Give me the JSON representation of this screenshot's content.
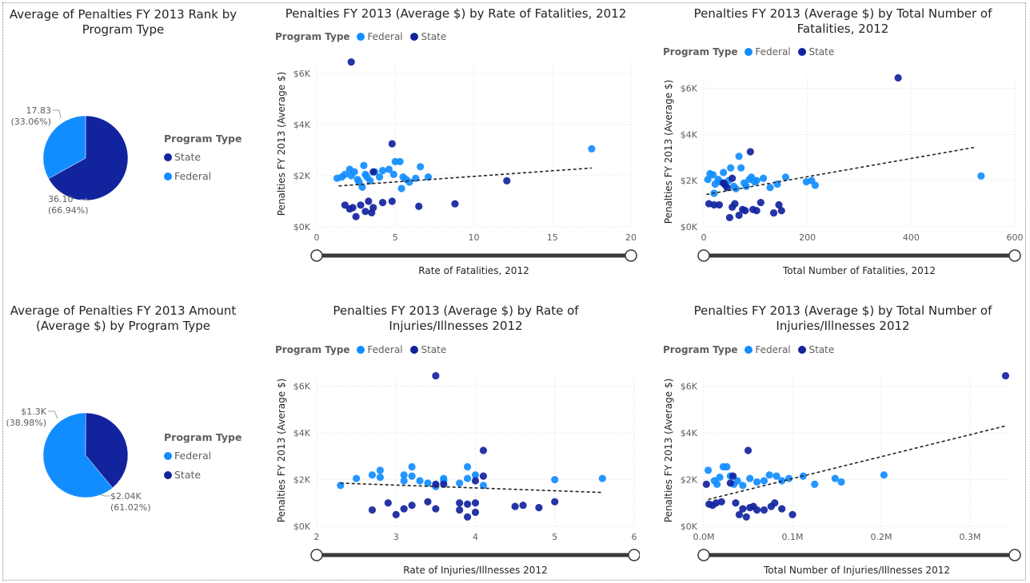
{
  "colors": {
    "federal": "#118dff",
    "state": "#12239e",
    "trend": "#252423",
    "axis_text": "#605e5c"
  },
  "legend": {
    "title": "Program Type",
    "federal": "Federal",
    "state": "State"
  },
  "pie1": {
    "title": "Average of Penalties FY 2013 Rank by Program Type",
    "legend_title": "Program Type",
    "legend_items": [
      "State",
      "Federal"
    ],
    "labels": [
      {
        "value": "17.83",
        "pct": "(33.06%)"
      },
      {
        "value": "36.10",
        "pct": "(66.94%)"
      }
    ]
  },
  "pie2": {
    "title": "Average of Penalties FY 2013 Amount (Average $) by Program Type",
    "legend_title": "Program Type",
    "legend_items": [
      "Federal",
      "State"
    ],
    "labels": [
      {
        "value": "$1.3K",
        "pct": "(38.98%)"
      },
      {
        "value": "$2.04K",
        "pct": "(61.02%)"
      }
    ]
  },
  "chart_data": [
    {
      "id": "pie1",
      "type": "pie",
      "title": "Average of Penalties FY 2013 Rank by Program Type",
      "slices": [
        {
          "name": "State",
          "value": 36.1,
          "pct": 66.94
        },
        {
          "name": "Federal",
          "value": 17.83,
          "pct": 33.06
        }
      ]
    },
    {
      "id": "pie2",
      "type": "pie",
      "title": "Average of Penalties FY 2013 Amount (Average $) by Program Type",
      "slices": [
        {
          "name": "Federal",
          "value": 2040,
          "pct": 61.02
        },
        {
          "name": "State",
          "value": 1300,
          "pct": 38.98
        }
      ]
    },
    {
      "id": "s1",
      "type": "scatter",
      "title": "Penalties FY 2013 (Average $) by Rate of Fatalities, 2012",
      "xlabel": "Rate of Fatalities, 2012",
      "ylabel": "Penalties FY 2013 (Average $)",
      "xlim": [
        0,
        20
      ],
      "ylim": [
        0,
        6500
      ],
      "xticks": [
        0,
        5,
        10,
        15,
        20
      ],
      "xtick_labels": [
        "0",
        "5",
        "10",
        "15",
        "20"
      ],
      "yticks": [
        0,
        2000,
        4000,
        6000
      ],
      "ytick_labels": [
        "$0K",
        "$2K",
        "$4K",
        "$6K"
      ],
      "trend": [
        [
          1.4,
          1600
        ],
        [
          17.5,
          2300
        ]
      ],
      "series": [
        {
          "name": "Federal",
          "points": [
            [
              1.3,
              1900
            ],
            [
              1.6,
              1950
            ],
            [
              1.8,
              2050
            ],
            [
              2.1,
              2250
            ],
            [
              2.2,
              2000
            ],
            [
              2.4,
              2150
            ],
            [
              2.6,
              1850
            ],
            [
              2.7,
              1750
            ],
            [
              2.9,
              1550
            ],
            [
              3.0,
              2400
            ],
            [
              3.1,
              2050
            ],
            [
              3.2,
              1950
            ],
            [
              3.4,
              1800
            ],
            [
              3.7,
              2150
            ],
            [
              4.0,
              1950
            ],
            [
              4.2,
              2200
            ],
            [
              4.6,
              2250
            ],
            [
              4.9,
              2050
            ],
            [
              5.0,
              2550
            ],
            [
              5.3,
              2550
            ],
            [
              5.5,
              1950
            ],
            [
              5.7,
              1850
            ],
            [
              5.9,
              1750
            ],
            [
              6.3,
              1900
            ],
            [
              6.6,
              2350
            ],
            [
              7.1,
              1950
            ],
            [
              5.4,
              1500
            ],
            [
              17.5,
              3050
            ]
          ]
        },
        {
          "name": "State",
          "points": [
            [
              2.2,
              6450
            ],
            [
              1.8,
              850
            ],
            [
              2.1,
              700
            ],
            [
              2.3,
              750
            ],
            [
              2.5,
              400
            ],
            [
              2.8,
              850
            ],
            [
              3.1,
              600
            ],
            [
              3.3,
              1000
            ],
            [
              3.5,
              550
            ],
            [
              3.6,
              750
            ],
            [
              4.2,
              950
            ],
            [
              4.8,
              1000
            ],
            [
              4.8,
              3250
            ],
            [
              6.5,
              800
            ],
            [
              8.8,
              900
            ],
            [
              12.1,
              1800
            ],
            [
              3.6,
              2150
            ]
          ]
        }
      ]
    },
    {
      "id": "s2",
      "type": "scatter",
      "title": "Penalties FY 2013 (Average $) by Total Number of Fatalities, 2012",
      "xlabel": "Total Number of Fatalities, 2012",
      "ylabel": "Penalties FY 2013 (Average $)",
      "xlim": [
        0,
        600
      ],
      "ylim": [
        0,
        6500
      ],
      "xticks": [
        0,
        200,
        400,
        600
      ],
      "xtick_labels": [
        "0",
        "200",
        "400",
        "600"
      ],
      "yticks": [
        0,
        2000,
        4000,
        6000
      ],
      "ytick_labels": [
        "$0K",
        "$2K",
        "$4K",
        "$6K"
      ],
      "trend": [
        [
          5,
          1400
        ],
        [
          525,
          3450
        ]
      ],
      "series": [
        {
          "name": "Federal",
          "points": [
            [
              8,
              2050
            ],
            [
              12,
              2300
            ],
            [
              18,
              2250
            ],
            [
              22,
              1850
            ],
            [
              28,
              2050
            ],
            [
              32,
              1950
            ],
            [
              38,
              2350
            ],
            [
              42,
              1800
            ],
            [
              48,
              2000
            ],
            [
              52,
              2550
            ],
            [
              58,
              1750
            ],
            [
              62,
              1650
            ],
            [
              68,
              3050
            ],
            [
              72,
              2550
            ],
            [
              78,
              1900
            ],
            [
              82,
              1750
            ],
            [
              88,
              2050
            ],
            [
              92,
              2150
            ],
            [
              98,
              1950
            ],
            [
              102,
              2000
            ],
            [
              115,
              2100
            ],
            [
              128,
              1700
            ],
            [
              142,
              1850
            ],
            [
              158,
              2150
            ],
            [
              198,
              1950
            ],
            [
              208,
              2000
            ],
            [
              215,
              1800
            ],
            [
              535,
              2200
            ],
            [
              20,
              1450
            ]
          ]
        },
        {
          "name": "State",
          "points": [
            [
              10,
              1000
            ],
            [
              20,
              950
            ],
            [
              30,
              950
            ],
            [
              38,
              1900
            ],
            [
              45,
              1700
            ],
            [
              50,
              400
            ],
            [
              55,
              850
            ],
            [
              60,
              1000
            ],
            [
              68,
              500
            ],
            [
              75,
              750
            ],
            [
              80,
              700
            ],
            [
              90,
              3250
            ],
            [
              95,
              750
            ],
            [
              102,
              700
            ],
            [
              110,
              1050
            ],
            [
              135,
              600
            ],
            [
              145,
              950
            ],
            [
              150,
              700
            ],
            [
              375,
              6450
            ],
            [
              40,
              1850
            ],
            [
              55,
              2100
            ]
          ]
        }
      ]
    },
    {
      "id": "s3",
      "type": "scatter",
      "title": "Penalties FY 2013 (Average $) by Rate of Injuries/Illnesses 2012",
      "xlabel": "Rate of Injuries/Illnesses 2012",
      "ylabel": "Penalties FY 2013 (Average $)",
      "xlim": [
        2,
        6
      ],
      "ylim": [
        0,
        6500
      ],
      "xticks": [
        2,
        3,
        4,
        5,
        6
      ],
      "xtick_labels": [
        "2",
        "3",
        "4",
        "5",
        "6"
      ],
      "yticks": [
        0,
        2000,
        4000,
        6000
      ],
      "ytick_labels": [
        "$0K",
        "$2K",
        "$4K",
        "$6K"
      ],
      "trend": [
        [
          2.3,
          1850
        ],
        [
          5.6,
          1450
        ]
      ],
      "series": [
        {
          "name": "Federal",
          "points": [
            [
              2.3,
              1750
            ],
            [
              2.5,
              2050
            ],
            [
              2.7,
              2200
            ],
            [
              2.8,
              2400
            ],
            [
              2.8,
              2100
            ],
            [
              3.1,
              2200
            ],
            [
              3.1,
              1950
            ],
            [
              3.2,
              2550
            ],
            [
              3.2,
              2150
            ],
            [
              3.3,
              1950
            ],
            [
              3.4,
              1850
            ],
            [
              3.5,
              1700
            ],
            [
              3.6,
              1950
            ],
            [
              3.8,
              1850
            ],
            [
              3.9,
              2550
            ],
            [
              3.9,
              2050
            ],
            [
              4.0,
              2200
            ],
            [
              4.1,
              1750
            ],
            [
              5.0,
              2000
            ],
            [
              5.6,
              2050
            ],
            [
              3.6,
              2050
            ]
          ]
        },
        {
          "name": "State",
          "points": [
            [
              2.7,
              700
            ],
            [
              2.9,
              1000
            ],
            [
              3.0,
              500
            ],
            [
              3.1,
              750
            ],
            [
              3.2,
              900
            ],
            [
              3.4,
              1050
            ],
            [
              3.5,
              1800
            ],
            [
              3.5,
              6450
            ],
            [
              3.5,
              750
            ],
            [
              3.8,
              1000
            ],
            [
              3.8,
              700
            ],
            [
              3.9,
              400
            ],
            [
              3.9,
              950
            ],
            [
              4.0,
              600
            ],
            [
              4.0,
              1000
            ],
            [
              4.1,
              2150
            ],
            [
              4.1,
              3250
            ],
            [
              4.5,
              850
            ],
            [
              4.6,
              900
            ],
            [
              4.8,
              800
            ],
            [
              5.0,
              1050
            ],
            [
              3.6,
              1800
            ],
            [
              4.0,
              1950
            ]
          ]
        }
      ]
    },
    {
      "id": "s4",
      "type": "scatter",
      "title": "Penalties FY 2013 (Average $) by Total Number of Injuries/Illnesses 2012",
      "xlabel": "Total Number of Injuries/Illnesses 2012",
      "ylabel": "Penalties FY 2013 (Average $)",
      "xlim": [
        0,
        345000
      ],
      "ylim": [
        0,
        6500
      ],
      "xticks": [
        0,
        100000,
        200000,
        300000
      ],
      "xtick_labels": [
        "0.0M",
        "0.1M",
        "0.2M",
        "0.3M"
      ],
      "yticks": [
        0,
        2000,
        4000,
        6000
      ],
      "ytick_labels": [
        "$0K",
        "$2K",
        "$4K",
        "$6K"
      ],
      "trend": [
        [
          5000,
          1150
        ],
        [
          340000,
          4300
        ]
      ],
      "series": [
        {
          "name": "Federal",
          "points": [
            [
              5000,
              2400
            ],
            [
              12000,
              1950
            ],
            [
              18000,
              2100
            ],
            [
              22000,
              2550
            ],
            [
              26000,
              2550
            ],
            [
              30000,
              2150
            ],
            [
              34000,
              1800
            ],
            [
              38000,
              1950
            ],
            [
              44000,
              1750
            ],
            [
              52000,
              2050
            ],
            [
              60000,
              1900
            ],
            [
              68000,
              1950
            ],
            [
              74000,
              2200
            ],
            [
              82000,
              2150
            ],
            [
              88000,
              1950
            ],
            [
              96000,
              2050
            ],
            [
              112000,
              2150
            ],
            [
              125000,
              1800
            ],
            [
              148000,
              2050
            ],
            [
              155000,
              1900
            ],
            [
              203000,
              2200
            ],
            [
              15000,
              1800
            ]
          ]
        },
        {
          "name": "State",
          "points": [
            [
              3000,
              1800
            ],
            [
              6000,
              950
            ],
            [
              10000,
              900
            ],
            [
              14000,
              1000
            ],
            [
              20000,
              1050
            ],
            [
              30000,
              1850
            ],
            [
              33000,
              2150
            ],
            [
              36000,
              1000
            ],
            [
              40000,
              500
            ],
            [
              44000,
              750
            ],
            [
              48000,
              400
            ],
            [
              50000,
              3250
            ],
            [
              52000,
              800
            ],
            [
              56000,
              850
            ],
            [
              60000,
              700
            ],
            [
              68000,
              700
            ],
            [
              76000,
              850
            ],
            [
              80000,
              1000
            ],
            [
              88000,
              750
            ],
            [
              100000,
              500
            ],
            [
              340000,
              6450
            ]
          ]
        }
      ]
    }
  ]
}
